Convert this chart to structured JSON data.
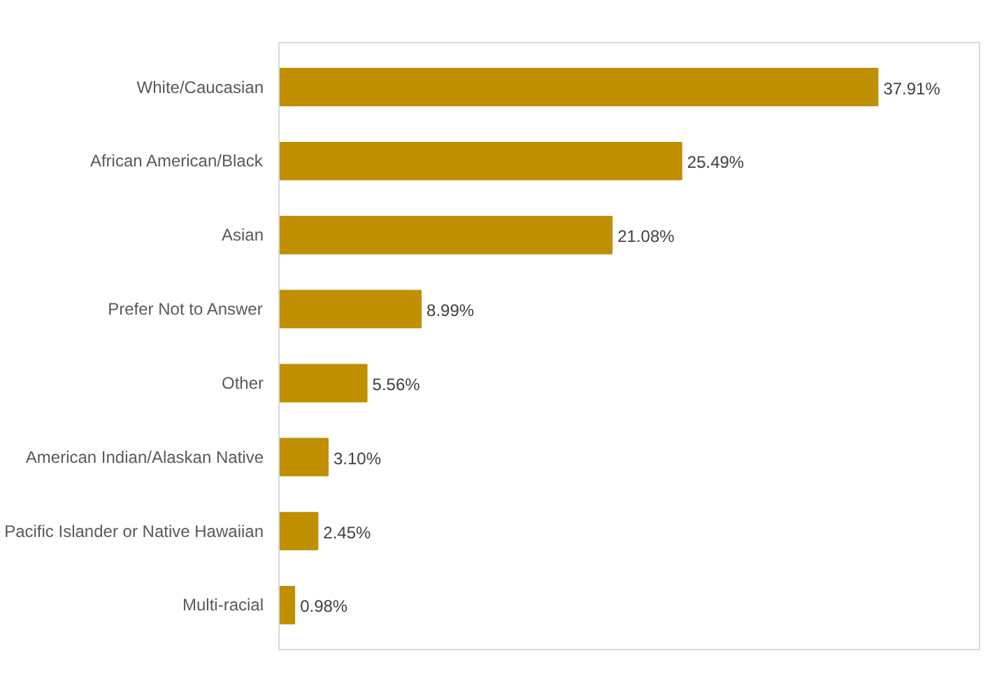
{
  "chart_data": {
    "type": "bar",
    "orientation": "horizontal",
    "categories": [
      "White/Caucasian",
      "African American/Black",
      "Asian",
      "Prefer Not to Answer",
      "Other",
      "American Indian/Alaskan Native",
      "Pacific Islander or Native Hawaiian",
      "Multi-racial"
    ],
    "values": [
      37.91,
      25.49,
      21.08,
      8.99,
      5.56,
      3.1,
      2.45,
      0.98
    ],
    "value_labels": [
      "37.91%",
      "25.49%",
      "21.08%",
      "8.99%",
      "5.56%",
      "3.10%",
      "2.45%",
      "0.98%"
    ],
    "color": "#bf8f00"
  }
}
